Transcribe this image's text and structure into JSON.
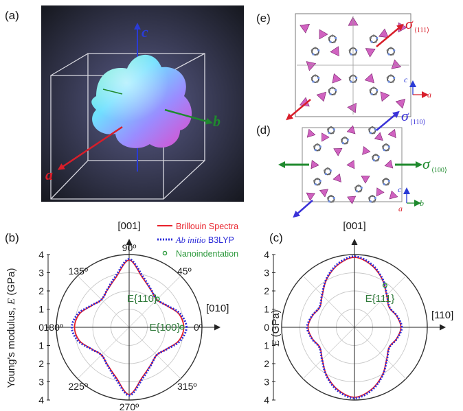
{
  "panels": {
    "a": {
      "label": "(a)",
      "axes": {
        "a": "a",
        "b": "b",
        "c": "c"
      },
      "colors": {
        "a": "#d81e2a",
        "b": "#1f8a2e",
        "c": "#2a3bd6"
      }
    },
    "e": {
      "label": "(e)",
      "stress_symbol": "σ",
      "stress_subscript": "⟨111⟩",
      "axes": {
        "c": "c",
        "a": "a"
      },
      "colors": {
        "arrow": "#d81e2a"
      }
    },
    "d": {
      "label": "(d)",
      "stress_symbol": "σ",
      "stress_110_subscript": "⟨110⟩",
      "stress_100_subscript": "⟨100⟩",
      "axes": {
        "c": "c",
        "a": "a",
        "b": "b"
      },
      "colors": {
        "s110": "#3a32d8",
        "s100": "#1f8a2e"
      }
    },
    "b": {
      "label": "(b)",
      "ylabel_prefix": "Young's modulus, ",
      "ylabel_var": "E",
      "ylabel_unit": " (GPa)",
      "top_dir": "[001]",
      "right_dir": "[010]",
      "angle_labels": {
        "a0": "0º",
        "a45": "45º",
        "a90": "90º",
        "a135": "135º",
        "a180": "180º",
        "a225": "225º",
        "a270": "270º",
        "a315": "315º"
      },
      "annotations": {
        "e110": "E{110}",
        "e100": "E{100}"
      },
      "ticks": [
        "4",
        "3",
        "2",
        "1",
        "0",
        "1",
        "2",
        "3",
        "4"
      ]
    },
    "c": {
      "label": "(c)",
      "ylabel_var": "E",
      "ylabel_unit": " (GPa)",
      "top_dir": "[001]",
      "right_dir": "[110]",
      "annotations": {
        "e111": "E{111}"
      },
      "ticks": [
        "4",
        "3",
        "2",
        "1",
        "0",
        "1",
        "2",
        "3",
        "4"
      ]
    }
  },
  "legend": {
    "brillouin": "Brillouin Spectra",
    "abinitio_italic": "Ab initio",
    "abinitio_rest": " B3LYP",
    "nano": "Nanoindentation"
  },
  "colors": {
    "brillouin": "#e8202a",
    "b3lyp": "#2b2bd8",
    "nano": "#2e9a3e",
    "annot": "#2f7a3a"
  },
  "chart_data": [
    {
      "type": "scatter",
      "title": "",
      "ylabel": "Young's modulus, E (GPa)",
      "coordinate": "polar",
      "angle_unit": "degrees",
      "rlim": [
        0,
        4
      ],
      "grid": true,
      "legend_position": "top-right",
      "series": [
        {
          "name": "Brillouin Spectra",
          "style": "line",
          "angles": [
            0,
            15,
            30,
            45,
            60,
            75,
            90,
            105,
            120,
            135,
            150,
            165,
            180,
            195,
            210,
            225,
            240,
            255,
            270,
            285,
            300,
            315,
            330,
            345
          ],
          "values": [
            3.0,
            2.83,
            2.38,
            2.15,
            2.38,
            2.83,
            3.7,
            2.83,
            2.38,
            2.15,
            2.38,
            2.83,
            3.0,
            2.83,
            2.38,
            2.15,
            2.38,
            2.83,
            3.7,
            2.83,
            2.38,
            2.15,
            2.38,
            2.83
          ]
        },
        {
          "name": "Ab initio B3LYP",
          "style": "dotted",
          "angles": [
            0,
            15,
            30,
            45,
            60,
            75,
            90,
            105,
            120,
            135,
            150,
            165,
            180,
            195,
            210,
            225,
            240,
            255,
            270,
            285,
            300,
            315,
            330,
            345
          ],
          "values": [
            3.15,
            2.9,
            2.4,
            2.15,
            2.4,
            2.9,
            3.75,
            2.9,
            2.4,
            2.15,
            2.4,
            2.9,
            3.15,
            2.9,
            2.4,
            2.15,
            2.4,
            2.9,
            3.75,
            2.9,
            2.4,
            2.15,
            2.4,
            2.9
          ]
        },
        {
          "name": "Nanoindentation",
          "style": "marker",
          "angles": [
            0,
            45
          ],
          "values": [
            2.9,
            2.2
          ]
        }
      ]
    },
    {
      "type": "scatter",
      "title": "",
      "ylabel": "E (GPa)",
      "coordinate": "polar",
      "angle_unit": "degrees",
      "rlim": [
        0,
        4
      ],
      "grid": true,
      "series": [
        {
          "name": "Brillouin Spectra",
          "style": "line",
          "angles": [
            0,
            15,
            30,
            45,
            60,
            75,
            90,
            105,
            120,
            135,
            150,
            165,
            180,
            195,
            210,
            225,
            240,
            255,
            270,
            285,
            300,
            315,
            330,
            345
          ],
          "values": [
            2.55,
            2.4,
            2.2,
            2.5,
            3.05,
            3.55,
            3.85,
            3.55,
            3.05,
            2.5,
            2.2,
            2.4,
            2.55,
            2.4,
            2.2,
            2.5,
            3.05,
            3.55,
            3.85,
            3.55,
            3.05,
            2.5,
            2.2,
            2.4
          ]
        },
        {
          "name": "Ab initio B3LYP",
          "style": "dotted",
          "angles": [
            0,
            15,
            30,
            45,
            60,
            75,
            90,
            105,
            120,
            135,
            150,
            165,
            180,
            195,
            210,
            225,
            240,
            255,
            270,
            285,
            300,
            315,
            330,
            345
          ],
          "values": [
            2.6,
            2.42,
            2.22,
            2.52,
            3.08,
            3.6,
            3.9,
            3.6,
            3.08,
            2.52,
            2.22,
            2.42,
            2.6,
            2.42,
            2.22,
            2.52,
            3.08,
            3.6,
            3.9,
            3.6,
            3.08,
            2.52,
            2.22,
            2.42
          ]
        },
        {
          "name": "Nanoindentation",
          "style": "marker",
          "angles": [
            54
          ],
          "values": [
            2.85
          ]
        }
      ]
    }
  ]
}
